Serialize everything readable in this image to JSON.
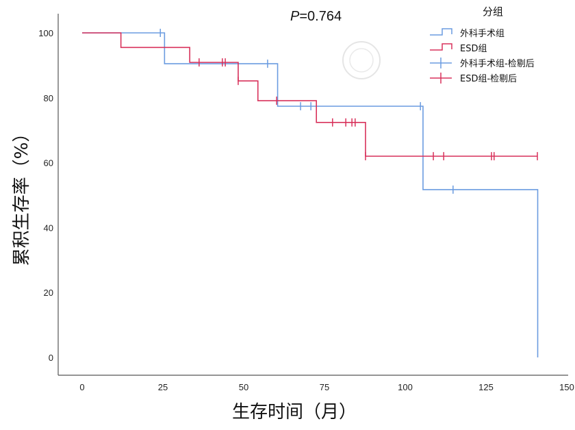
{
  "chart_data": {
    "type": "line",
    "subtype": "kaplan-meier",
    "annotation": {
      "p_label": "P",
      "p_value": "=0.764"
    },
    "xlabel": "生存时间（月）",
    "ylabel": "累积生存率（%）",
    "xlim": [
      0,
      150
    ],
    "ylim": [
      0,
      100
    ],
    "xticks": [
      "0",
      "25",
      "50",
      "75",
      "100",
      "125",
      "150"
    ],
    "yticks": [
      "0",
      "20",
      "40",
      "60",
      "80",
      "100"
    ],
    "grid": false,
    "legend": {
      "title": "分组",
      "position": "top-right",
      "entries": [
        "外科手术组",
        "ESD组",
        "外科手术组-检剔后",
        "ESD组-检剔后"
      ]
    },
    "series": [
      {
        "name": "外科手术组",
        "color": "#6a9be0",
        "steps": [
          [
            0,
            100
          ],
          [
            25.5,
            90.5
          ],
          [
            60.5,
            77.4
          ],
          [
            105.5,
            51.7
          ],
          [
            141,
            0
          ]
        ],
        "end": 141,
        "censored": [
          24.2,
          57.4,
          67.6,
          70.8,
          104.7,
          114.8
        ]
      },
      {
        "name": "ESD组",
        "color": "#d8315b",
        "steps": [
          [
            0,
            100
          ],
          [
            12,
            95.5
          ],
          [
            33.3,
            90.9
          ],
          [
            48.3,
            85.2
          ],
          [
            54.4,
            79.1
          ],
          [
            72.5,
            72.4
          ],
          [
            87.7,
            62.0
          ]
        ],
        "end": 141,
        "censored": [
          36.2,
          43.4,
          44.3,
          48.3,
          60.2,
          77.5,
          81.6,
          83.5,
          84.5,
          87.7,
          108.7,
          111.9,
          126.7,
          127.5,
          140.9
        ]
      }
    ]
  }
}
